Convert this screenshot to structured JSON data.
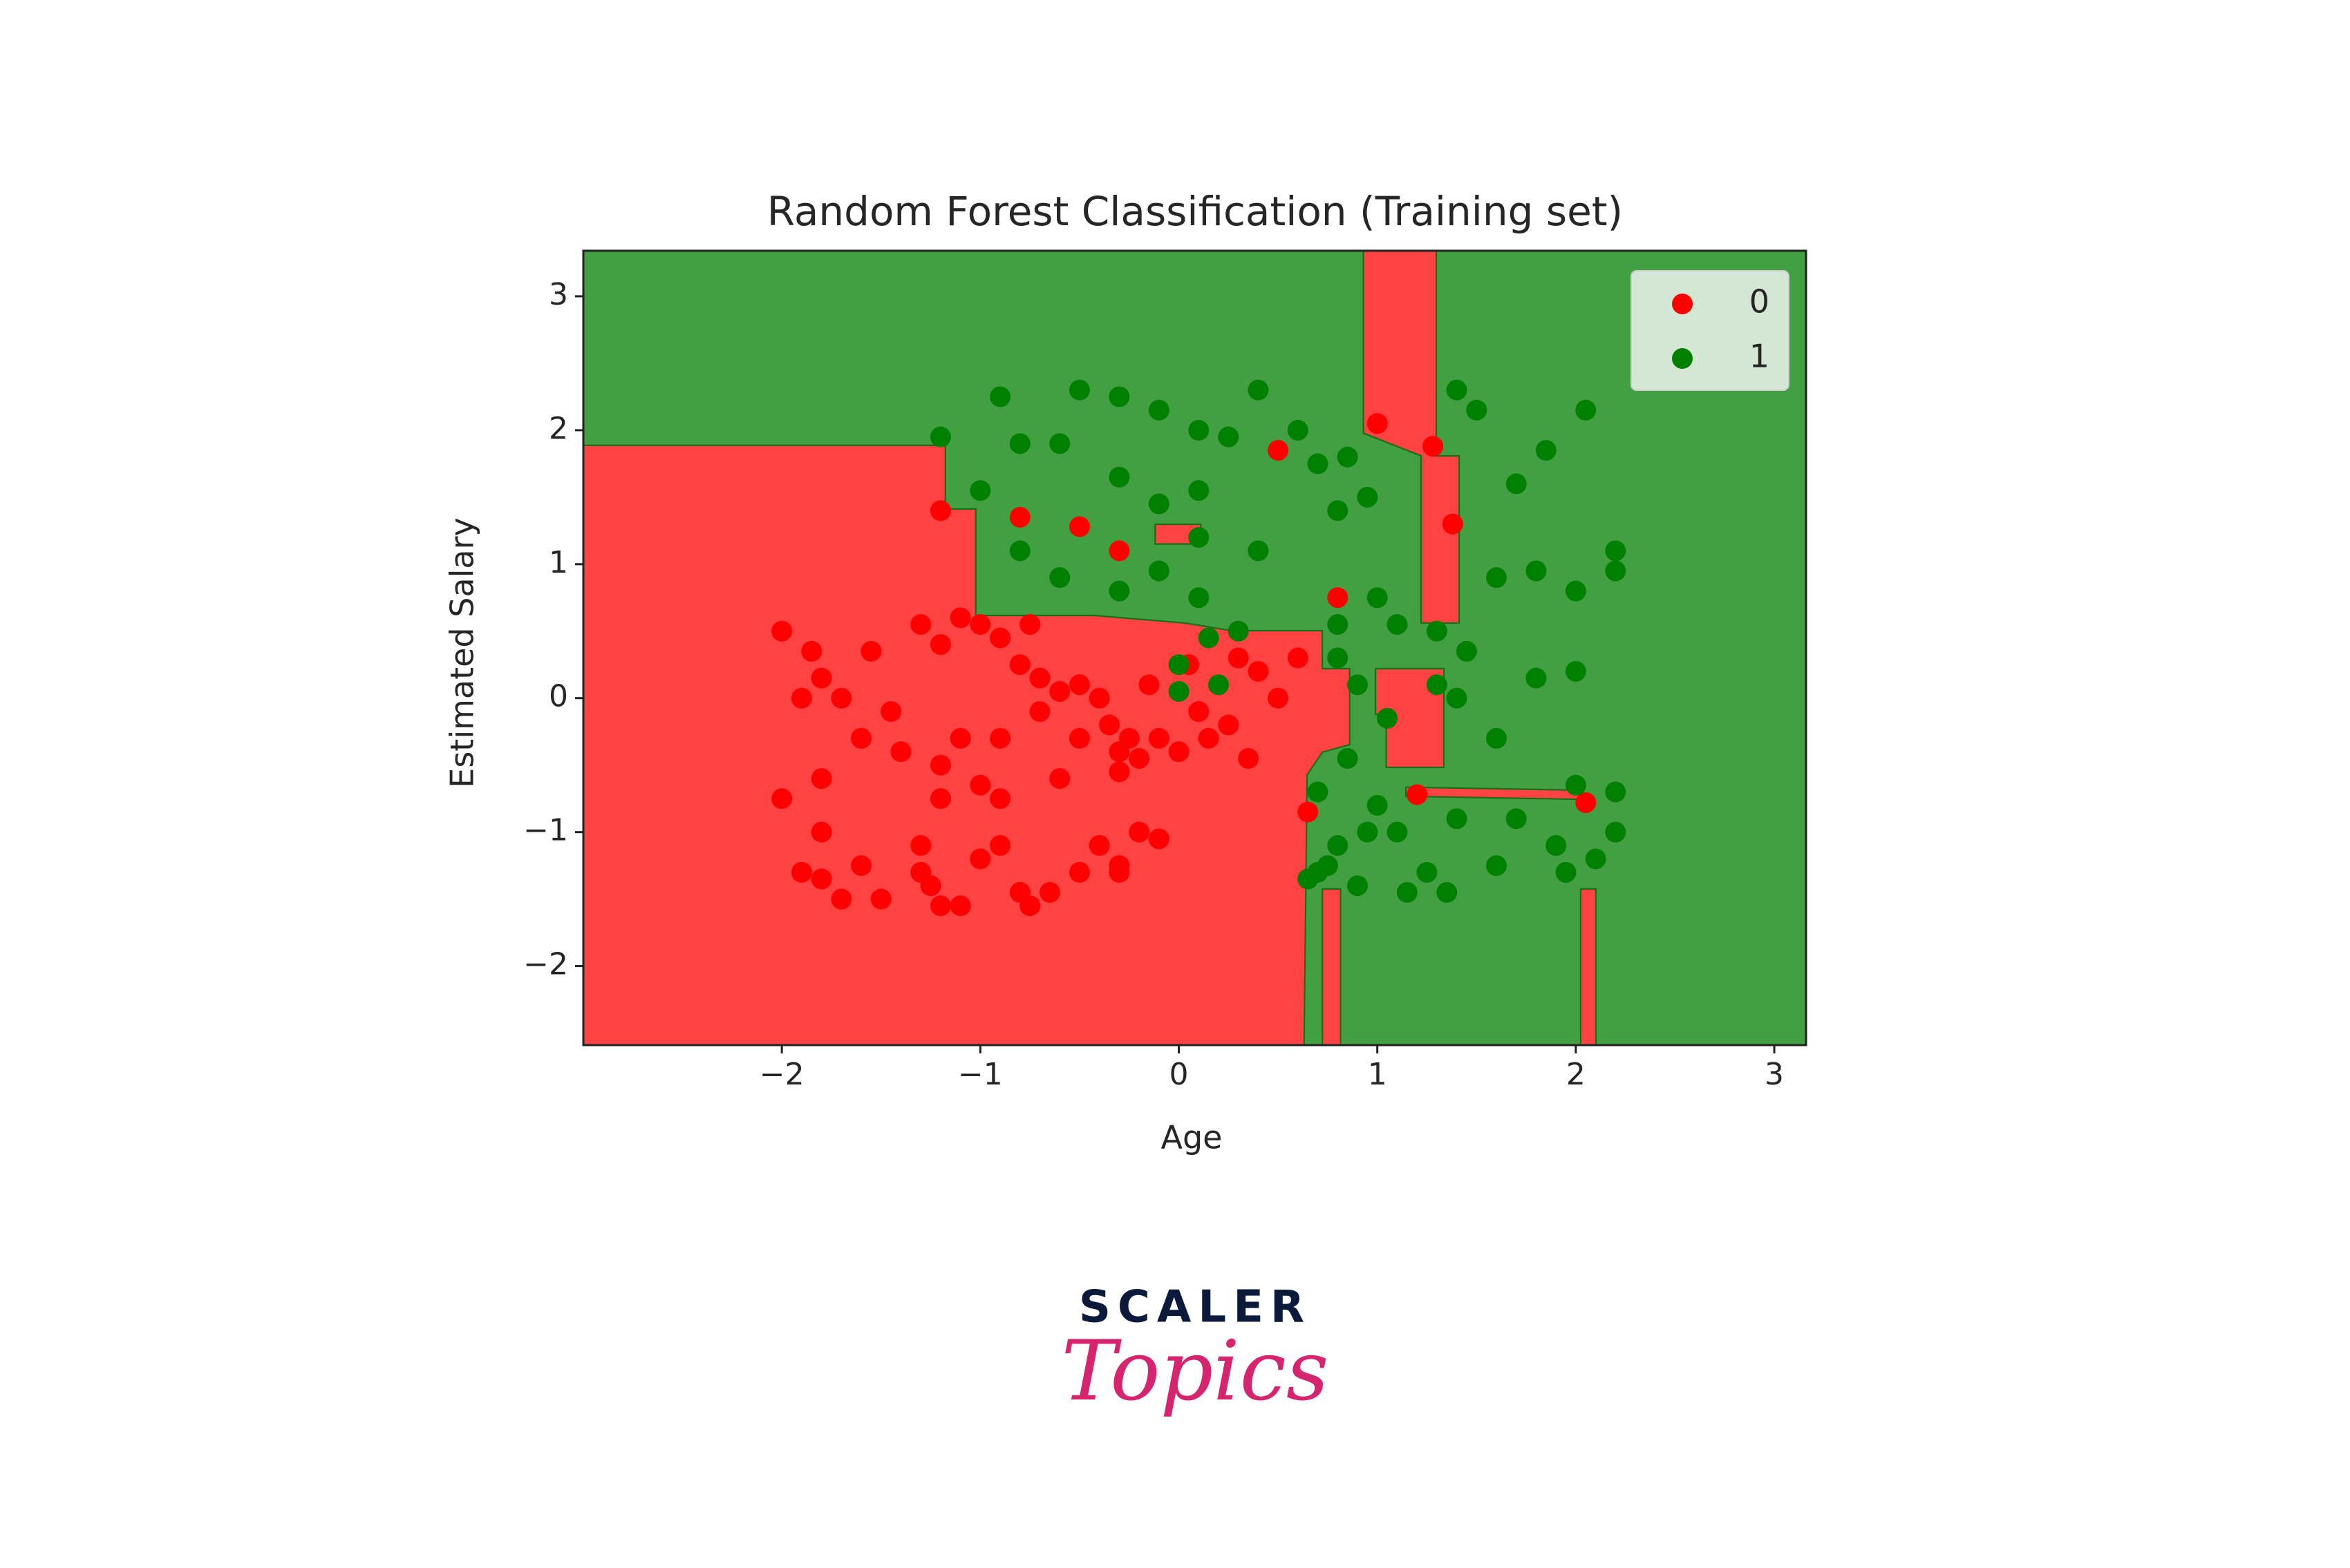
{
  "chart_data": {
    "type": "scatter",
    "title": "Random Forest Classification (Training set)",
    "x_label": "Age",
    "y_label": "Estimated Salary",
    "xlim": [
      -3.0,
      3.16
    ],
    "ylim": [
      -2.59,
      3.34
    ],
    "xticks": [
      {
        "value": -2,
        "label": "−2"
      },
      {
        "value": -1,
        "label": "−1"
      },
      0,
      1,
      2,
      3
    ],
    "yticks": [
      {
        "value": -2,
        "label": "−2"
      },
      {
        "value": -1,
        "label": "−1"
      },
      0,
      1,
      2,
      3
    ],
    "legend": "upper right",
    "series": [
      {
        "name": "0",
        "color": "#ff0000",
        "x": [
          -2.0,
          -1.85,
          -1.8,
          -1.9,
          -1.7,
          -1.55,
          -1.45,
          -1.4,
          -1.6,
          -2.0,
          -1.8,
          -1.8,
          -1.9,
          -1.8,
          -1.6,
          -1.5,
          -1.7,
          -1.3,
          -1.3,
          -1.25,
          -1.2,
          -1.1,
          -1.0,
          -0.9,
          -0.8,
          -0.75,
          -0.65,
          -0.5,
          -0.4,
          -0.3,
          -0.3,
          -0.2,
          -0.1,
          -1.3,
          -1.2,
          -1.1,
          -1.0,
          -0.9,
          -0.8,
          -0.75,
          -0.7,
          -0.7,
          -0.9,
          -1.1,
          -1.2,
          -1.2,
          -1.0,
          -0.9,
          -0.6,
          -0.5,
          -0.5,
          -0.4,
          -0.35,
          -0.3,
          -0.3,
          -0.25,
          -0.2,
          -0.1,
          0.0,
          0.1,
          0.15,
          0.25,
          0.35,
          0.3,
          0.4,
          0.6,
          0.5,
          0.65,
          -1.2,
          -0.8,
          -0.5,
          -0.3,
          0.5,
          1.0,
          1.28,
          1.38,
          0.8,
          1.2,
          2.05,
          -0.6,
          -0.15,
          0.05
        ],
        "y": [
          0.5,
          0.35,
          0.15,
          0.0,
          0.0,
          0.35,
          -0.1,
          -0.4,
          -0.3,
          -0.75,
          -0.6,
          -1.0,
          -1.3,
          -1.35,
          -1.25,
          -1.5,
          -1.5,
          -1.1,
          -1.3,
          -1.4,
          -1.55,
          -1.55,
          -1.2,
          -1.1,
          -1.45,
          -1.55,
          -1.45,
          -1.3,
          -1.1,
          -1.25,
          -1.3,
          -1.0,
          -1.05,
          0.55,
          0.4,
          0.6,
          0.55,
          0.45,
          0.25,
          0.55,
          0.15,
          -0.1,
          -0.3,
          -0.3,
          -0.5,
          -0.75,
          -0.65,
          -0.75,
          -0.6,
          -0.3,
          0.1,
          0.0,
          -0.2,
          -0.4,
          -0.55,
          -0.3,
          -0.45,
          -0.3,
          -0.4,
          -0.1,
          -0.3,
          -0.2,
          -0.45,
          0.3,
          0.2,
          0.3,
          0.0,
          -0.85,
          1.4,
          1.35,
          1.28,
          1.1,
          1.85,
          2.05,
          1.88,
          1.3,
          0.75,
          -0.72,
          -0.78,
          0.05,
          0.1,
          0.25
        ]
      },
      {
        "name": "1",
        "color": "#008000",
        "x": [
          -1.2,
          -0.9,
          -1.0,
          -0.8,
          -0.6,
          -0.5,
          -0.3,
          -0.1,
          0.1,
          0.25,
          0.4,
          0.6,
          0.7,
          0.85,
          -0.3,
          -0.1,
          0.1,
          0.1,
          0.4,
          -0.8,
          -0.6,
          -0.3,
          -0.1,
          0.1,
          0.3,
          0.8,
          0.95,
          1.0,
          0.8,
          1.1,
          1.3,
          1.45,
          0.8,
          0.9,
          1.3,
          1.4,
          1.6,
          1.8,
          2.0,
          1.6,
          1.8,
          2.0,
          2.2,
          2.2,
          1.7,
          1.85,
          2.05,
          1.5,
          1.4,
          0.7,
          0.8,
          0.7,
          0.9,
          0.95,
          1.0,
          1.1,
          1.25,
          1.35,
          1.4,
          1.6,
          1.7,
          1.9,
          1.95,
          2.1,
          2.2,
          2.2,
          2.0,
          0.0,
          0.0,
          0.2,
          0.15,
          1.05,
          0.85,
          0.65,
          0.75,
          1.15
        ],
        "y": [
          1.95,
          2.25,
          1.55,
          1.9,
          1.9,
          2.3,
          2.25,
          2.15,
          2.0,
          1.95,
          2.3,
          2.0,
          1.75,
          1.8,
          1.65,
          1.45,
          1.55,
          1.2,
          1.1,
          1.1,
          0.9,
          0.8,
          0.95,
          0.75,
          0.5,
          1.4,
          1.5,
          0.75,
          0.55,
          0.55,
          0.5,
          0.35,
          0.3,
          0.1,
          0.1,
          0.0,
          -0.3,
          0.15,
          0.2,
          0.9,
          0.95,
          0.8,
          1.1,
          0.95,
          1.6,
          1.85,
          2.15,
          2.15,
          2.3,
          -0.7,
          -1.1,
          -1.3,
          -1.4,
          -1.0,
          -0.8,
          -1.0,
          -1.3,
          -1.45,
          -0.9,
          -1.25,
          -0.9,
          -1.1,
          -1.3,
          -1.2,
          -1.0,
          -0.7,
          -0.65,
          0.25,
          0.05,
          0.1,
          0.45,
          -0.15,
          -0.45,
          -1.35,
          -1.25,
          -1.45
        ]
      }
    ]
  },
  "brand": {
    "name": "SCALER",
    "tagline": "Topics"
  }
}
